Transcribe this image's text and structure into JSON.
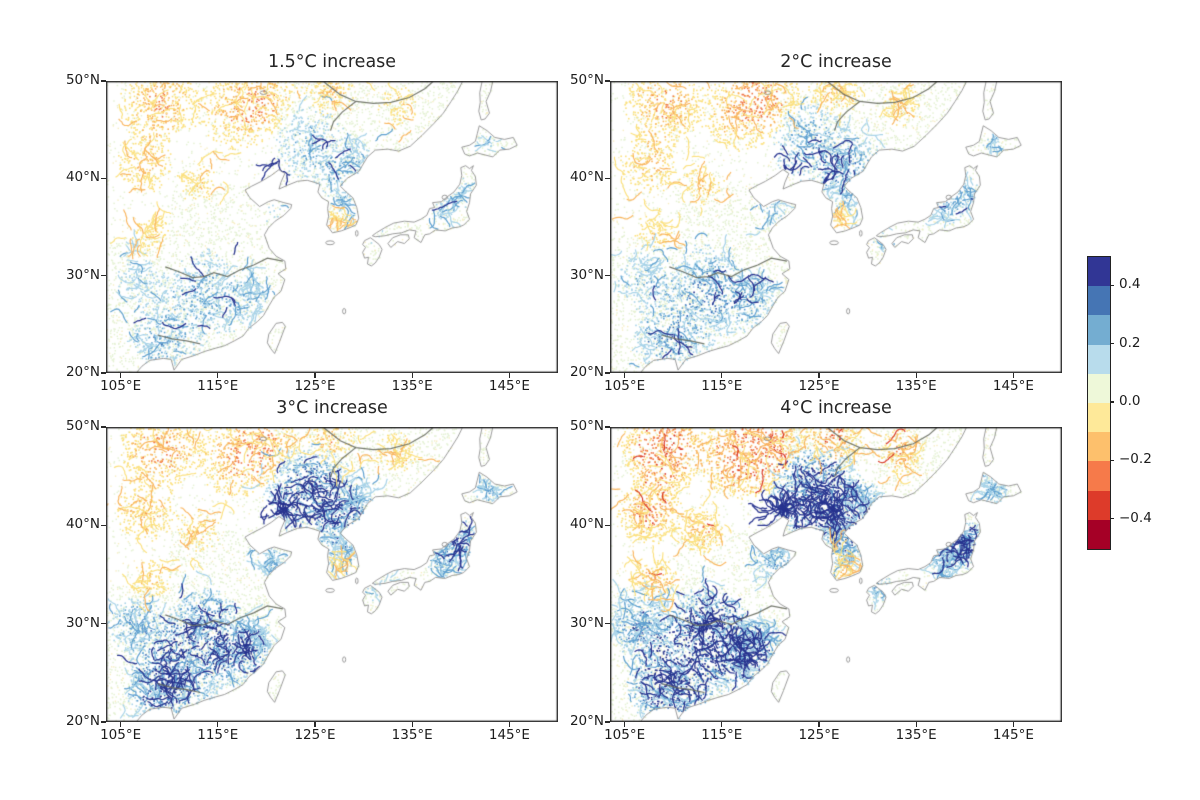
{
  "figure": {
    "background": "#ffffff",
    "kind": "four-panel stippled map figure with shared colorbar"
  },
  "chart_data": {
    "type": "heatmap",
    "layout": "2x2 map panels + shared vertical colorbar",
    "region": "East Asia (eastern China, Korean Peninsula, Japan; ~103.5-150E, 20-50N)",
    "panels": [
      {
        "title": "1.5°C increase",
        "pattern": {
          "positive_blue_intensity": 0.34,
          "dark_network_intensity": 0.07,
          "negative_warm_intensity": 0.55,
          "summary": "mostly near-zero pale green/yellow stipple; scattered light-blue (~+0.1 to +0.2) patches in NE and S China; faint tan/orange (~-0.1) wavy texture over Mongolia / far north"
        }
      },
      {
        "title": "2°C increase",
        "pattern": {
          "positive_blue_intensity": 0.46,
          "dark_network_intensity": 0.14,
          "negative_warm_intensity": 0.6,
          "summary": "slightly stronger and more widespread light-blue increases than 1.5°C"
        }
      },
      {
        "title": "3°C increase",
        "pattern": {
          "positive_blue_intensity": 0.78,
          "dark_network_intensity": 0.6,
          "negative_warm_intensity": 0.65,
          "summary": "widespread blue increases; dark-navy (>+0.4) river-network clusters in NE China, along the Yangtze and in Japan"
        }
      },
      {
        "title": "4°C increase",
        "pattern": {
          "positive_blue_intensity": 1.05,
          "dark_network_intensity": 1.0,
          "negative_warm_intensity": 1.0,
          "summary": "strongest response: dense dark-blue networks across China, Korea and Japan; orange/red (~-0.2 to -0.4) decreases in the far north; pale-yellow patch over South Korea"
        }
      }
    ],
    "x_axis": {
      "range_deg_east": [
        103.5,
        150
      ],
      "tick_values": [
        105,
        115,
        125,
        135,
        145
      ],
      "tick_labels": [
        "105°E",
        "115°E",
        "125°E",
        "135°E",
        "145°E"
      ]
    },
    "y_axis": {
      "range_deg_north": [
        20,
        50
      ],
      "tick_values": [
        50,
        40,
        30,
        20
      ],
      "tick_labels": [
        "50°N",
        "40°N",
        "30°N",
        "20°N"
      ]
    },
    "colorbar": {
      "value_range": [
        -0.5,
        0.5
      ],
      "tick_values": [
        0.4,
        0.2,
        0.0,
        -0.2,
        -0.4
      ],
      "tick_labels": [
        "0.4",
        "0.2",
        "0.0",
        "−0.2",
        "−0.4"
      ],
      "segment_colors_top_to_bottom": [
        "#313695",
        "#4575b4",
        "#74add1",
        "#b8dcec",
        "#eef8d9",
        "#fee999",
        "#fdc06c",
        "#f67a4a",
        "#dd3b2a",
        "#a50026"
      ]
    },
    "map_colors": {
      "coastline": "#909090",
      "river": "#666a5e",
      "land_base_speckle": "#e4f1d3",
      "sea": "#ffffff"
    }
  }
}
